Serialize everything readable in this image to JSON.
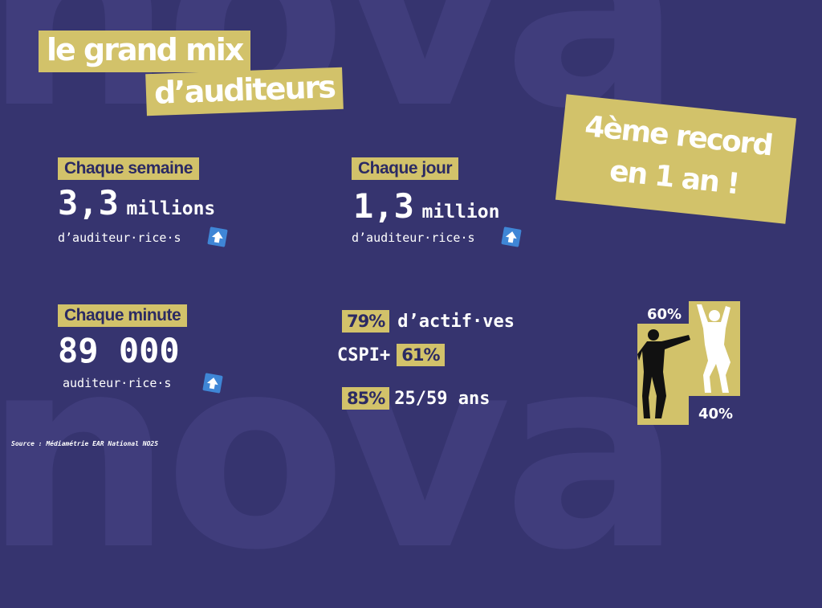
{
  "background": {
    "word": "nova",
    "color": "#36346f",
    "accent": "#d2c26a"
  },
  "title": {
    "line1": "le grand mix",
    "line2": "d’auditeurs"
  },
  "record": {
    "line1": "4ème record",
    "line2": "en 1 an !"
  },
  "weekly": {
    "label": "Chaque semaine",
    "value": "3,3",
    "unit": "millions",
    "sub": "d’auditeur·rice·s",
    "trend": "up-arrow-icon"
  },
  "daily": {
    "label": "Chaque jour",
    "value": "1,3",
    "unit": "million",
    "sub": "d’auditeur·rice·s",
    "trend": "up-arrow-icon"
  },
  "minute": {
    "label": "Chaque minute",
    "value": "89 000",
    "sub": "auditeur·rice·s",
    "trend": "up-arrow-icon"
  },
  "stats": {
    "actifs": {
      "pct": "79%",
      "text": "d’actif·ves"
    },
    "cspi": {
      "pre": "CSPI+",
      "pct": "61%"
    },
    "age": {
      "pct": "85%",
      "text": "25/59 ans"
    }
  },
  "gender": {
    "men_pct": "60%",
    "women_pct": "40%"
  },
  "source": "Source : Médiamétrie EAR National NO25"
}
